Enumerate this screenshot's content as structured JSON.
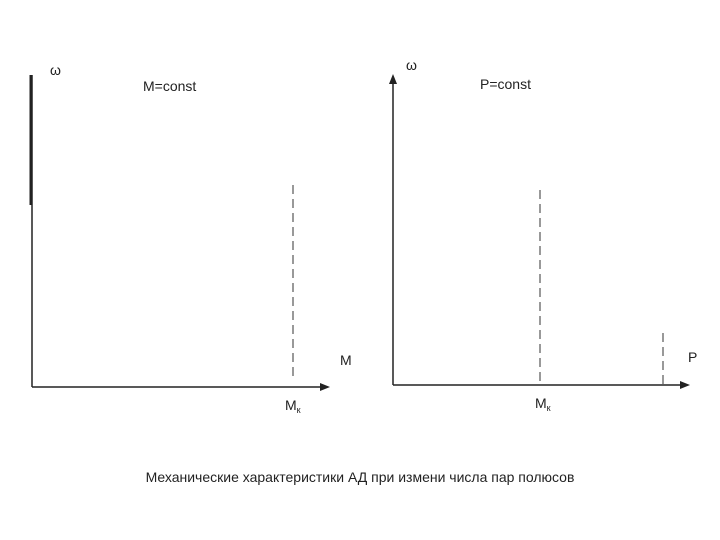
{
  "left": {
    "y_label": "ω",
    "condition": "M=const",
    "x_label": "M",
    "marker": {
      "main": "M",
      "sub": "к"
    }
  },
  "right": {
    "y_label": "ω",
    "condition": "P=const",
    "x_label": "P",
    "marker": {
      "main": "M",
      "sub": "к"
    }
  },
  "caption": "Механические характеристики АД при измени числа пар полюсов"
}
